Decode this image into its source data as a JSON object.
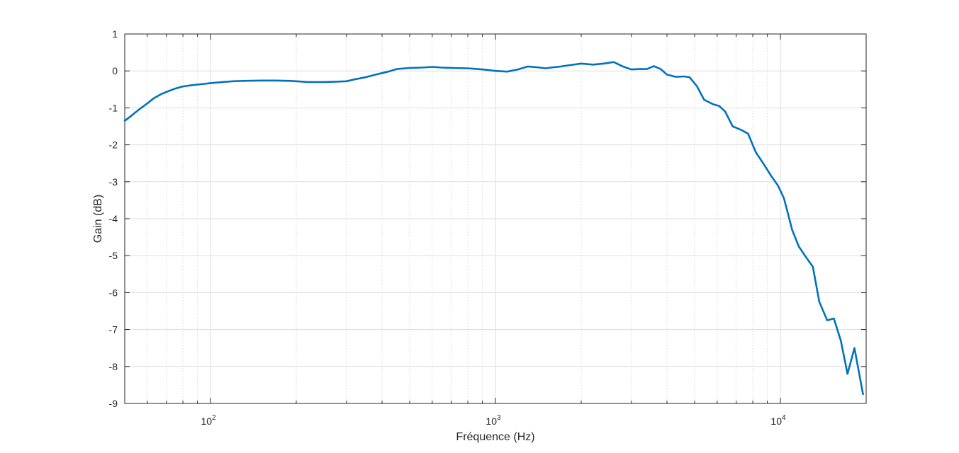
{
  "chart_data": {
    "type": "line",
    "xlabel": "Fréquence (Hz)",
    "ylabel": "Gain (dB)",
    "xscale": "log",
    "xlim": [
      50,
      20000
    ],
    "ylim": [
      -9,
      1
    ],
    "grid": true,
    "x_ticks": [
      {
        "value": 100,
        "base": "10",
        "exp": "2"
      },
      {
        "value": 1000,
        "base": "10",
        "exp": "3"
      },
      {
        "value": 10000,
        "base": "10",
        "exp": "4"
      }
    ],
    "y_ticks": [
      1,
      0,
      -1,
      -2,
      -3,
      -4,
      -5,
      -6,
      -7,
      -8,
      -9
    ],
    "line_color": "#0072BD",
    "series": [
      {
        "color": "#0072BD",
        "points": [
          [
            50,
            -1.35
          ],
          [
            53,
            -1.2
          ],
          [
            56,
            -1.05
          ],
          [
            60,
            -0.88
          ],
          [
            63,
            -0.75
          ],
          [
            67,
            -0.63
          ],
          [
            71,
            -0.55
          ],
          [
            75,
            -0.48
          ],
          [
            80,
            -0.42
          ],
          [
            85,
            -0.39
          ],
          [
            90,
            -0.37
          ],
          [
            95,
            -0.35
          ],
          [
            100,
            -0.33
          ],
          [
            110,
            -0.3
          ],
          [
            120,
            -0.28
          ],
          [
            130,
            -0.27
          ],
          [
            150,
            -0.26
          ],
          [
            170,
            -0.26
          ],
          [
            190,
            -0.27
          ],
          [
            200,
            -0.28
          ],
          [
            220,
            -0.3
          ],
          [
            250,
            -0.3
          ],
          [
            280,
            -0.29
          ],
          [
            300,
            -0.28
          ],
          [
            320,
            -0.23
          ],
          [
            350,
            -0.17
          ],
          [
            380,
            -0.1
          ],
          [
            420,
            -0.02
          ],
          [
            450,
            0.05
          ],
          [
            500,
            0.08
          ],
          [
            550,
            0.09
          ],
          [
            600,
            0.11
          ],
          [
            650,
            0.09
          ],
          [
            700,
            0.08
          ],
          [
            800,
            0.07
          ],
          [
            900,
            0.04
          ],
          [
            1000,
            0.0
          ],
          [
            1100,
            -0.02
          ],
          [
            1200,
            0.04
          ],
          [
            1300,
            0.12
          ],
          [
            1400,
            0.1
          ],
          [
            1500,
            0.07
          ],
          [
            1600,
            0.1
          ],
          [
            1700,
            0.12
          ],
          [
            1800,
            0.15
          ],
          [
            2000,
            0.2
          ],
          [
            2200,
            0.17
          ],
          [
            2400,
            0.2
          ],
          [
            2600,
            0.24
          ],
          [
            2800,
            0.12
          ],
          [
            3000,
            0.04
          ],
          [
            3200,
            0.05
          ],
          [
            3400,
            0.05
          ],
          [
            3600,
            0.13
          ],
          [
            3800,
            0.05
          ],
          [
            4000,
            -0.1
          ],
          [
            4300,
            -0.16
          ],
          [
            4600,
            -0.15
          ],
          [
            4800,
            -0.17
          ],
          [
            5100,
            -0.42
          ],
          [
            5400,
            -0.78
          ],
          [
            5800,
            -0.9
          ],
          [
            6100,
            -0.95
          ],
          [
            6400,
            -1.1
          ],
          [
            6800,
            -1.5
          ],
          [
            7300,
            -1.6
          ],
          [
            7700,
            -1.7
          ],
          [
            8200,
            -2.2
          ],
          [
            8700,
            -2.5
          ],
          [
            9300,
            -2.85
          ],
          [
            9800,
            -3.1
          ],
          [
            10300,
            -3.45
          ],
          [
            11000,
            -4.3
          ],
          [
            11600,
            -4.75
          ],
          [
            12200,
            -5.0
          ],
          [
            13000,
            -5.3
          ],
          [
            13700,
            -6.25
          ],
          [
            14600,
            -6.75
          ],
          [
            15400,
            -6.7
          ],
          [
            16300,
            -7.3
          ],
          [
            17200,
            -8.2
          ],
          [
            18200,
            -7.5
          ],
          [
            19500,
            -8.75
          ]
        ]
      }
    ]
  }
}
